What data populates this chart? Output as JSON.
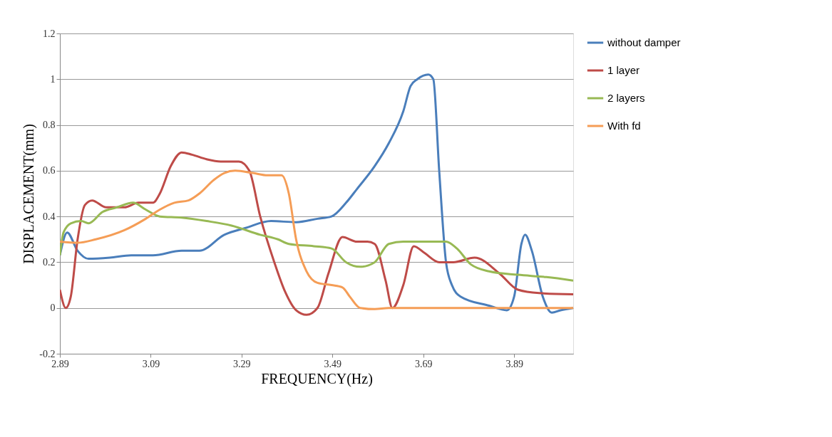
{
  "chart_data": {
    "type": "line",
    "xlabel": "FREQUENCY(Hz)",
    "ylabel": "DISPLACEMENT(mm)",
    "xlim": [
      2.89,
      4.02
    ],
    "xticks": [
      2.89,
      3.09,
      3.29,
      3.49,
      3.69,
      3.89
    ],
    "ylim": [
      -0.2,
      1.2
    ],
    "yticks": [
      -0.2,
      0,
      0.2,
      0.4,
      0.6,
      0.8,
      1,
      1.2
    ],
    "grid": "y",
    "legend": "right",
    "marker": "none",
    "line_style": "solid",
    "series": [
      {
        "name": "without damper",
        "color": "#4a7ebb",
        "x": [
          2.89,
          2.906,
          2.929,
          2.953,
          3.0,
          3.047,
          3.095,
          3.158,
          3.197,
          3.252,
          3.299,
          3.355,
          3.41,
          3.457,
          3.488,
          3.52,
          3.544,
          3.583,
          3.614,
          3.646,
          3.662,
          3.677,
          3.701,
          3.712,
          3.725,
          3.74,
          3.753,
          3.772,
          3.835,
          3.874,
          3.89,
          3.906,
          3.914,
          3.929,
          3.953,
          3.973,
          3.992,
          4.02
        ],
        "values": [
          0.23,
          0.33,
          0.25,
          0.215,
          0.22,
          0.23,
          0.23,
          0.25,
          0.25,
          0.32,
          0.35,
          0.38,
          0.375,
          0.39,
          0.4,
          0.46,
          0.52,
          0.62,
          0.72,
          0.86,
          0.97,
          1.0,
          1.02,
          1.0,
          0.6,
          0.2,
          0.1,
          0.05,
          0.01,
          -0.01,
          0.05,
          0.28,
          0.32,
          0.25,
          0.05,
          -0.02,
          -0.01,
          0
        ]
      },
      {
        "name": "1 layer",
        "color": "#be4b48",
        "x": [
          2.89,
          2.903,
          2.914,
          2.929,
          2.945,
          2.961,
          2.992,
          3.032,
          3.063,
          3.095,
          3.11,
          3.134,
          3.158,
          3.181,
          3.213,
          3.244,
          3.284,
          3.307,
          3.331,
          3.362,
          3.386,
          3.41,
          3.433,
          3.457,
          3.481,
          3.512,
          3.544,
          3.567,
          3.583,
          3.607,
          3.622,
          3.646,
          3.669,
          3.693,
          3.725,
          3.756,
          3.803,
          3.858,
          3.898,
          3.945,
          4.02
        ],
        "values": [
          0.08,
          0.0,
          0.05,
          0.3,
          0.45,
          0.47,
          0.44,
          0.44,
          0.46,
          0.46,
          0.5,
          0.62,
          0.68,
          0.67,
          0.65,
          0.64,
          0.64,
          0.6,
          0.4,
          0.2,
          0.07,
          -0.01,
          -0.03,
          0.0,
          0.15,
          0.31,
          0.29,
          0.29,
          0.28,
          0.12,
          0.0,
          0.1,
          0.27,
          0.24,
          0.2,
          0.2,
          0.22,
          0.15,
          0.08,
          0.065,
          0.06
        ]
      },
      {
        "name": "2 layers",
        "color": "#98b954",
        "x": [
          2.89,
          2.898,
          2.914,
          2.937,
          2.953,
          2.984,
          3.016,
          3.051,
          3.079,
          3.11,
          3.158,
          3.213,
          3.268,
          3.331,
          3.37,
          3.394,
          3.449,
          3.488,
          3.52,
          3.551,
          3.583,
          3.614,
          3.646,
          3.677,
          3.74,
          3.764,
          3.795,
          3.835,
          3.898,
          3.961,
          4.02
        ],
        "values": [
          0.23,
          0.33,
          0.37,
          0.38,
          0.37,
          0.42,
          0.44,
          0.46,
          0.43,
          0.4,
          0.395,
          0.38,
          0.36,
          0.32,
          0.3,
          0.28,
          0.27,
          0.26,
          0.2,
          0.18,
          0.2,
          0.28,
          0.29,
          0.29,
          0.29,
          0.26,
          0.19,
          0.16,
          0.145,
          0.135,
          0.12
        ]
      },
      {
        "name": "With fd",
        "color": "#f59d56",
        "x": [
          2.89,
          2.929,
          2.969,
          3.032,
          3.079,
          3.11,
          3.142,
          3.173,
          3.197,
          3.229,
          3.252,
          3.276,
          3.315,
          3.347,
          3.378,
          3.394,
          3.41,
          3.433,
          3.457,
          3.488,
          3.512,
          3.528,
          3.551,
          3.583,
          3.614,
          4.02
        ],
        "values": [
          0.29,
          0.285,
          0.3,
          0.34,
          0.39,
          0.43,
          0.46,
          0.47,
          0.5,
          0.56,
          0.59,
          0.6,
          0.59,
          0.58,
          0.58,
          0.5,
          0.3,
          0.16,
          0.11,
          0.1,
          0.09,
          0.05,
          0.0,
          -0.005,
          0.0,
          0.0
        ]
      }
    ]
  }
}
